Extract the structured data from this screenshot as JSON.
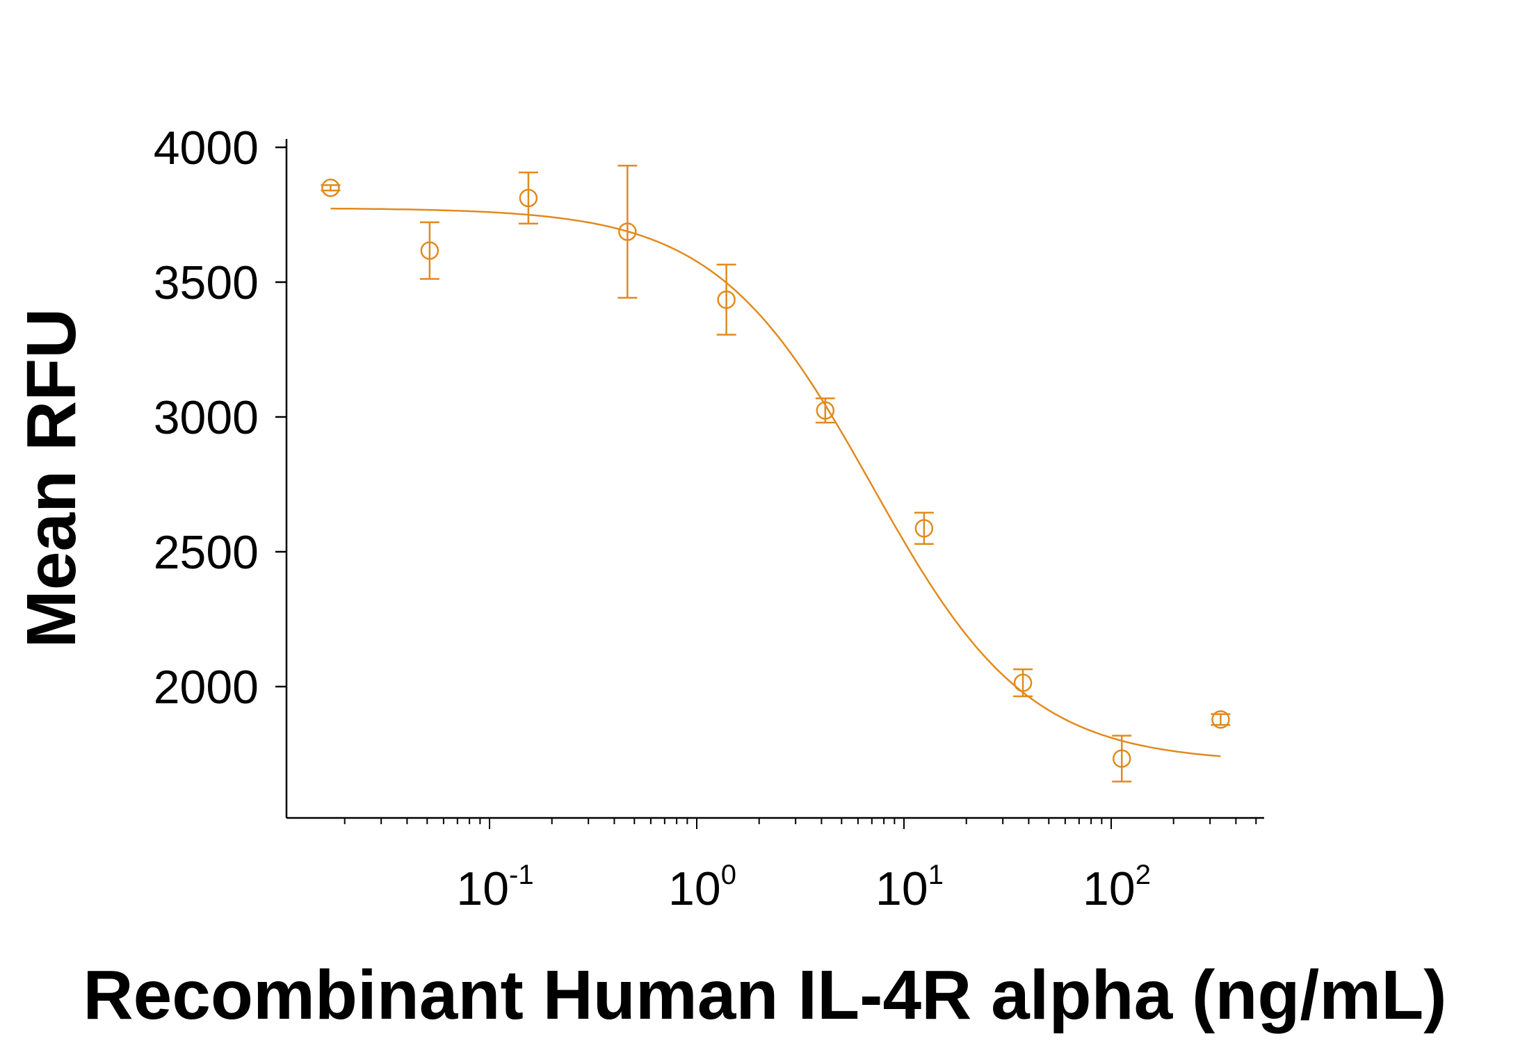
{
  "chart_data": {
    "type": "scatter",
    "xlabel": "Recombinant Human IL-4R alpha (ng/mL)",
    "ylabel": "Mean RFU",
    "x_scale": "log",
    "xlim": [
      0.01,
      500
    ],
    "ylim": [
      1530,
      4000
    ],
    "y_ticks": [
      2000,
      2500,
      3000,
      3500,
      4000
    ],
    "x_ticks": [
      {
        "value": 0.1,
        "base": "10",
        "exp": "-1"
      },
      {
        "value": 1,
        "base": "10",
        "exp": "0"
      },
      {
        "value": 10,
        "base": "10",
        "exp": "1"
      },
      {
        "value": 100,
        "base": "10",
        "exp": "2"
      }
    ],
    "color": "#E08A1E",
    "grid": false,
    "series": [
      {
        "points": [
          {
            "x": 0.0171,
            "y": 3850,
            "err": 10
          },
          {
            "x": 0.0514,
            "y": 3617,
            "err": 105
          },
          {
            "x": 0.154,
            "y": 3812,
            "err": 95
          },
          {
            "x": 0.463,
            "y": 3687,
            "err": 245
          },
          {
            "x": 1.39,
            "y": 3435,
            "err": 130
          },
          {
            "x": 4.17,
            "y": 3024,
            "err": 45
          },
          {
            "x": 12.5,
            "y": 2587,
            "err": 58
          },
          {
            "x": 37.5,
            "y": 2014,
            "err": 50
          },
          {
            "x": 112.5,
            "y": 1733,
            "err": 85
          },
          {
            "x": 337.5,
            "y": 1878,
            "err": 20
          }
        ]
      }
    ],
    "fit_curve": {
      "model": "4PL",
      "top": 3775,
      "bottom": 1718,
      "ec50": 7.0,
      "hill": 1.15,
      "x_range": [
        0.0171,
        337.5
      ]
    }
  }
}
